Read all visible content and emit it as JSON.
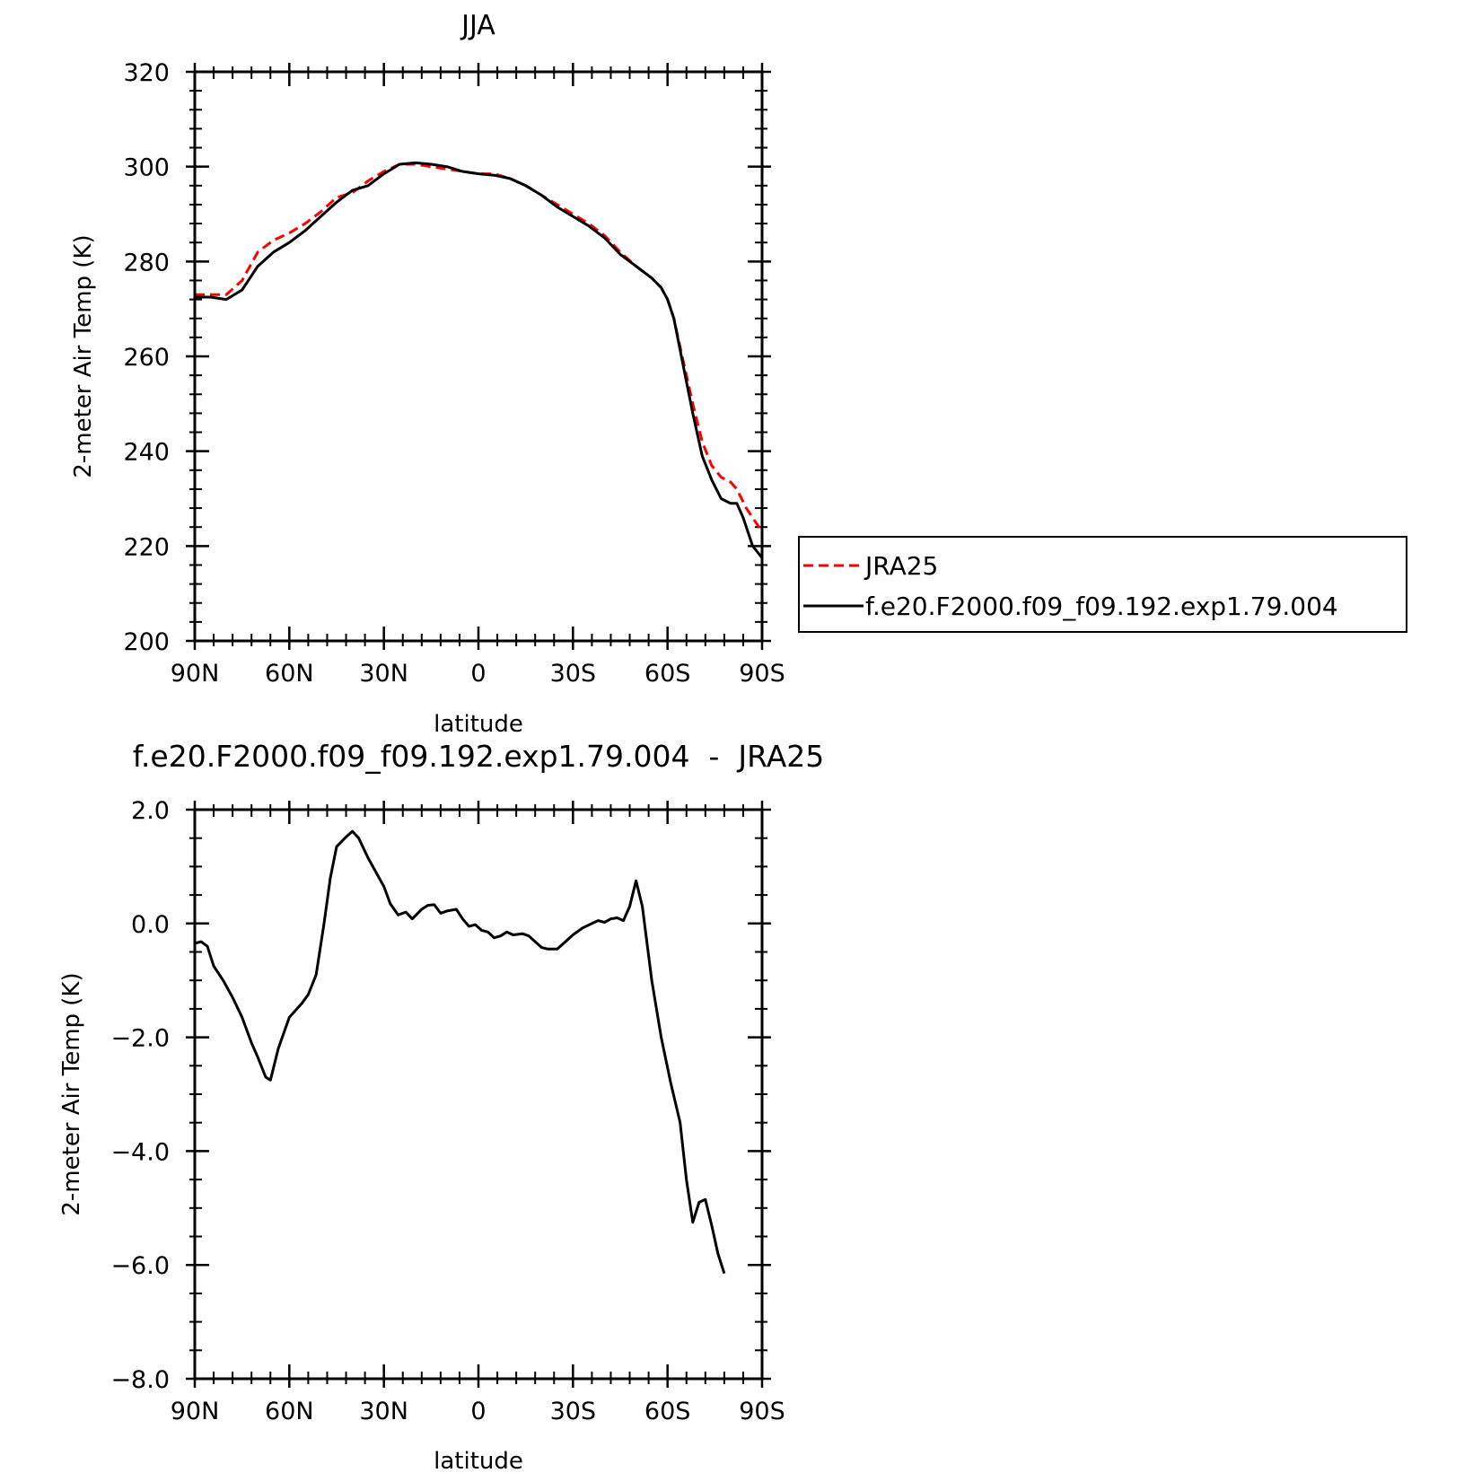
{
  "chart_data": [
    {
      "type": "line",
      "title": "JJA",
      "xlabel": "latitude",
      "ylabel": "2-meter Air Temp (K)",
      "xlim": [
        90,
        -90
      ],
      "ylim": [
        200,
        320
      ],
      "xticks": [
        {
          "value": 90,
          "label": "90N"
        },
        {
          "value": 60,
          "label": "60N"
        },
        {
          "value": 30,
          "label": "30N"
        },
        {
          "value": 0,
          "label": "0"
        },
        {
          "value": -30,
          "label": "30S"
        },
        {
          "value": -60,
          "label": "60S"
        },
        {
          "value": -90,
          "label": "90S"
        }
      ],
      "yticks": [
        {
          "value": 320,
          "label": "320"
        },
        {
          "value": 300,
          "label": "300"
        },
        {
          "value": 280,
          "label": "280"
        },
        {
          "value": 260,
          "label": "260"
        },
        {
          "value": 240,
          "label": "240"
        },
        {
          "value": 220,
          "label": "220"
        },
        {
          "value": 200,
          "label": "200"
        }
      ],
      "legend_position": "right",
      "series": [
        {
          "name": "JRA25",
          "color": "#ff0000",
          "dash": "dashed",
          "points": [
            [
              90,
              273
            ],
            [
              85,
              273
            ],
            [
              80,
              273
            ],
            [
              75,
              276
            ],
            [
              70,
              282
            ],
            [
              65,
              284.5
            ],
            [
              60,
              286
            ],
            [
              55,
              288
            ],
            [
              50,
              290.5
            ],
            [
              45,
              293.5
            ],
            [
              40,
              294.5
            ],
            [
              35,
              297
            ],
            [
              30,
              299
            ],
            [
              25,
              300.5
            ],
            [
              20,
              300.5
            ],
            [
              15,
              300
            ],
            [
              10,
              299.5
            ],
            [
              5,
              299
            ],
            [
              0,
              298.5
            ],
            [
              -5,
              298.5
            ],
            [
              -10,
              297.5
            ],
            [
              -15,
              296
            ],
            [
              -20,
              294
            ],
            [
              -25,
              292
            ],
            [
              -30,
              290
            ],
            [
              -35,
              288
            ],
            [
              -40,
              285.5
            ],
            [
              -45,
              282
            ],
            [
              -50,
              279
            ],
            [
              -55,
              276.5
            ],
            [
              -58,
              274.5
            ],
            [
              -60,
              272
            ],
            [
              -62,
              268
            ],
            [
              -65,
              259
            ],
            [
              -68,
              250
            ],
            [
              -71,
              242
            ],
            [
              -74,
              237
            ],
            [
              -77,
              234.5
            ],
            [
              -80,
              233.5
            ],
            [
              -82,
              232
            ],
            [
              -85,
              228
            ],
            [
              -88,
              225
            ],
            [
              -90,
              223
            ]
          ]
        },
        {
          "name": "f.e20.F2000.f09_f09.192.exp1.79.004",
          "color": "#000000",
          "dash": "solid",
          "points": [
            [
              90,
              272.5
            ],
            [
              85,
              272.5
            ],
            [
              80,
              272
            ],
            [
              75,
              274
            ],
            [
              70,
              279
            ],
            [
              65,
              282
            ],
            [
              60,
              284
            ],
            [
              55,
              286.5
            ],
            [
              50,
              289.5
            ],
            [
              45,
              292.5
            ],
            [
              40,
              295
            ],
            [
              35,
              296
            ],
            [
              30,
              298.5
            ],
            [
              25,
              300.5
            ],
            [
              20,
              300.8
            ],
            [
              15,
              300.5
            ],
            [
              10,
              300
            ],
            [
              5,
              299
            ],
            [
              0,
              298.5
            ],
            [
              -5,
              298.2
            ],
            [
              -10,
              297.5
            ],
            [
              -15,
              296
            ],
            [
              -20,
              294
            ],
            [
              -25,
              291.5
            ],
            [
              -30,
              289.5
            ],
            [
              -35,
              287.5
            ],
            [
              -40,
              285
            ],
            [
              -45,
              281.5
            ],
            [
              -50,
              279
            ],
            [
              -55,
              276.5
            ],
            [
              -58,
              274.5
            ],
            [
              -60,
              272
            ],
            [
              -62,
              268
            ],
            [
              -65,
              258
            ],
            [
              -68,
              248
            ],
            [
              -71,
              239
            ],
            [
              -74,
              234
            ],
            [
              -77,
              230
            ],
            [
              -80,
              229
            ],
            [
              -82,
              229
            ],
            [
              -84,
              226
            ],
            [
              -87,
              220
            ],
            [
              -90,
              217.5
            ]
          ]
        }
      ]
    },
    {
      "type": "line",
      "title": "f.e20.F2000.f09_f09.192.exp1.79.004  -  JRA25",
      "xlabel": "latitude",
      "ylabel": "2-meter Air Temp (K)",
      "xlim": [
        90,
        -90
      ],
      "ylim": [
        -8,
        2
      ],
      "xticks": [
        {
          "value": 90,
          "label": "90N"
        },
        {
          "value": 60,
          "label": "60N"
        },
        {
          "value": 30,
          "label": "30N"
        },
        {
          "value": 0,
          "label": "0"
        },
        {
          "value": -30,
          "label": "30S"
        },
        {
          "value": -60,
          "label": "60S"
        },
        {
          "value": -90,
          "label": "90S"
        }
      ],
      "yticks": [
        {
          "value": 2,
          "label": "2.0"
        },
        {
          "value": 0,
          "label": "0.0"
        },
        {
          "value": -2,
          "label": "−2.0"
        },
        {
          "value": -4,
          "label": "−4.0"
        },
        {
          "value": -6,
          "label": "−6.0"
        },
        {
          "value": -8,
          "label": "−8.0"
        }
      ],
      "series": [
        {
          "color": "#000000",
          "dash": "solid",
          "points": [
            [
              90,
              -0.35
            ],
            [
              88,
              -0.32
            ],
            [
              86,
              -0.4
            ],
            [
              84,
              -0.75
            ],
            [
              81,
              -1.0
            ],
            [
              78,
              -1.3
            ],
            [
              75,
              -1.65
            ],
            [
              72,
              -2.1
            ],
            [
              70,
              -2.35
            ],
            [
              67.5,
              -2.7
            ],
            [
              66,
              -2.75
            ],
            [
              63.5,
              -2.2
            ],
            [
              60,
              -1.65
            ],
            [
              56,
              -1.4
            ],
            [
              54,
              -1.25
            ],
            [
              51.5,
              -0.9
            ],
            [
              49,
              0.0
            ],
            [
              47,
              0.8
            ],
            [
              45,
              1.35
            ],
            [
              42,
              1.52
            ],
            [
              40,
              1.62
            ],
            [
              38,
              1.5
            ],
            [
              35,
              1.15
            ],
            [
              32,
              0.85
            ],
            [
              30,
              0.65
            ],
            [
              28,
              0.35
            ],
            [
              25.5,
              0.15
            ],
            [
              23,
              0.2
            ],
            [
              21,
              0.08
            ],
            [
              18,
              0.25
            ],
            [
              16,
              0.32
            ],
            [
              14,
              0.33
            ],
            [
              12,
              0.18
            ],
            [
              10,
              0.22
            ],
            [
              7,
              0.25
            ],
            [
              5,
              0.08
            ],
            [
              3,
              -0.05
            ],
            [
              1,
              -0.02
            ],
            [
              -1,
              -0.12
            ],
            [
              -3,
              -0.15
            ],
            [
              -5,
              -0.25
            ],
            [
              -7,
              -0.22
            ],
            [
              -9,
              -0.15
            ],
            [
              -11,
              -0.2
            ],
            [
              -14,
              -0.18
            ],
            [
              -16,
              -0.22
            ],
            [
              -18,
              -0.32
            ],
            [
              -20,
              -0.42
            ],
            [
              -22,
              -0.45
            ],
            [
              -25,
              -0.45
            ],
            [
              -27,
              -0.35
            ],
            [
              -30,
              -0.2
            ],
            [
              -33,
              -0.08
            ],
            [
              -36,
              0.0
            ],
            [
              -38,
              0.05
            ],
            [
              -40,
              0.02
            ],
            [
              -42,
              0.08
            ],
            [
              -44,
              0.1
            ],
            [
              -46,
              0.05
            ],
            [
              -48,
              0.3
            ],
            [
              -50,
              0.75
            ],
            [
              -52,
              0.3
            ],
            [
              -55,
              -1.0
            ],
            [
              -58,
              -2.0
            ],
            [
              -61,
              -2.8
            ],
            [
              -64,
              -3.5
            ],
            [
              -66,
              -4.5
            ],
            [
              -68,
              -5.25
            ],
            [
              -70,
              -4.9
            ],
            [
              -72,
              -4.85
            ],
            [
              -74,
              -5.3
            ],
            [
              -76,
              -5.8
            ],
            [
              -78,
              -6.15
            ]
          ]
        }
      ]
    }
  ]
}
